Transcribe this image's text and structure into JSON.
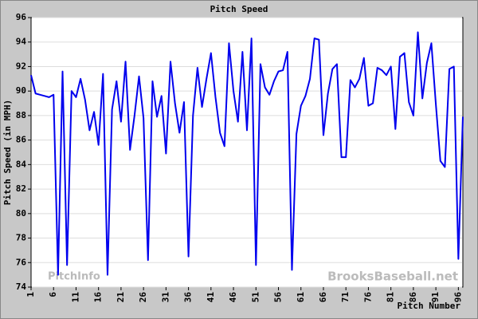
{
  "chart_data": {
    "type": "line",
    "title": "Pitch Speed",
    "x_label": "Pitch Number",
    "y_label": "Pitch Speed (in MPH)",
    "annotations": [
      "PitchInfo",
      "BrooksBaseball.net"
    ],
    "x": [
      1,
      2,
      3,
      4,
      5,
      6,
      7,
      8,
      9,
      10,
      11,
      12,
      13,
      14,
      15,
      16,
      17,
      18,
      19,
      20,
      21,
      22,
      23,
      24,
      25,
      26,
      27,
      28,
      29,
      30,
      31,
      32,
      33,
      34,
      35,
      36,
      37,
      38,
      39,
      40,
      41,
      42,
      43,
      44,
      45,
      46,
      47,
      48,
      49,
      50,
      51,
      52,
      53,
      54,
      55,
      56,
      57,
      58,
      59,
      60,
      61,
      62,
      63,
      64,
      65,
      66,
      67,
      68,
      69,
      70,
      71,
      72,
      73,
      74,
      75,
      76,
      77,
      78,
      79,
      80,
      81,
      82,
      83,
      84,
      85,
      86,
      87,
      88,
      89,
      90,
      91,
      92,
      93,
      94,
      95,
      96,
      97
    ],
    "series": [
      {
        "name": "Pitch Speed",
        "color": "#0000ee",
        "values": [
          91.3,
          89.8,
          89.7,
          89.6,
          89.5,
          89.7,
          75.0,
          91.6,
          75.8,
          90.0,
          89.5,
          91.0,
          89.3,
          86.8,
          88.3,
          85.6,
          91.4,
          75.0,
          88.5,
          90.8,
          87.5,
          92.4,
          85.2,
          88.0,
          91.2,
          87.8,
          76.2,
          90.8,
          87.9,
          89.6,
          84.9,
          92.4,
          89.0,
          86.6,
          89.1,
          76.5,
          88.0,
          91.9,
          88.7,
          91.0,
          93.1,
          89.5,
          86.6,
          85.5,
          93.9,
          90.0,
          87.5,
          93.2,
          86.8,
          94.3,
          75.8,
          92.2,
          90.3,
          89.7,
          90.8,
          91.6,
          91.7,
          93.2,
          75.4,
          86.5,
          88.8,
          89.6,
          91.0,
          94.3,
          94.2,
          86.4,
          89.8,
          91.8,
          92.2,
          84.6,
          84.6,
          90.9,
          90.3,
          91.0,
          92.7,
          88.8,
          89.0,
          91.9,
          91.7,
          91.3,
          92.0,
          86.9,
          92.8,
          93.1,
          89.1,
          88.0,
          94.8,
          89.4,
          92.3,
          93.9,
          88.9,
          84.3,
          83.8,
          91.8,
          92.0,
          76.3,
          87.9
        ]
      }
    ],
    "xlim": [
      1,
      97
    ],
    "xticks": [
      1,
      6,
      11,
      16,
      21,
      26,
      31,
      36,
      41,
      46,
      51,
      56,
      61,
      66,
      71,
      76,
      81,
      86,
      91,
      96
    ],
    "ylim": [
      74,
      96
    ],
    "yticks": [
      74,
      76,
      78,
      80,
      82,
      84,
      86,
      88,
      90,
      92,
      94,
      96
    ],
    "grid": true
  }
}
